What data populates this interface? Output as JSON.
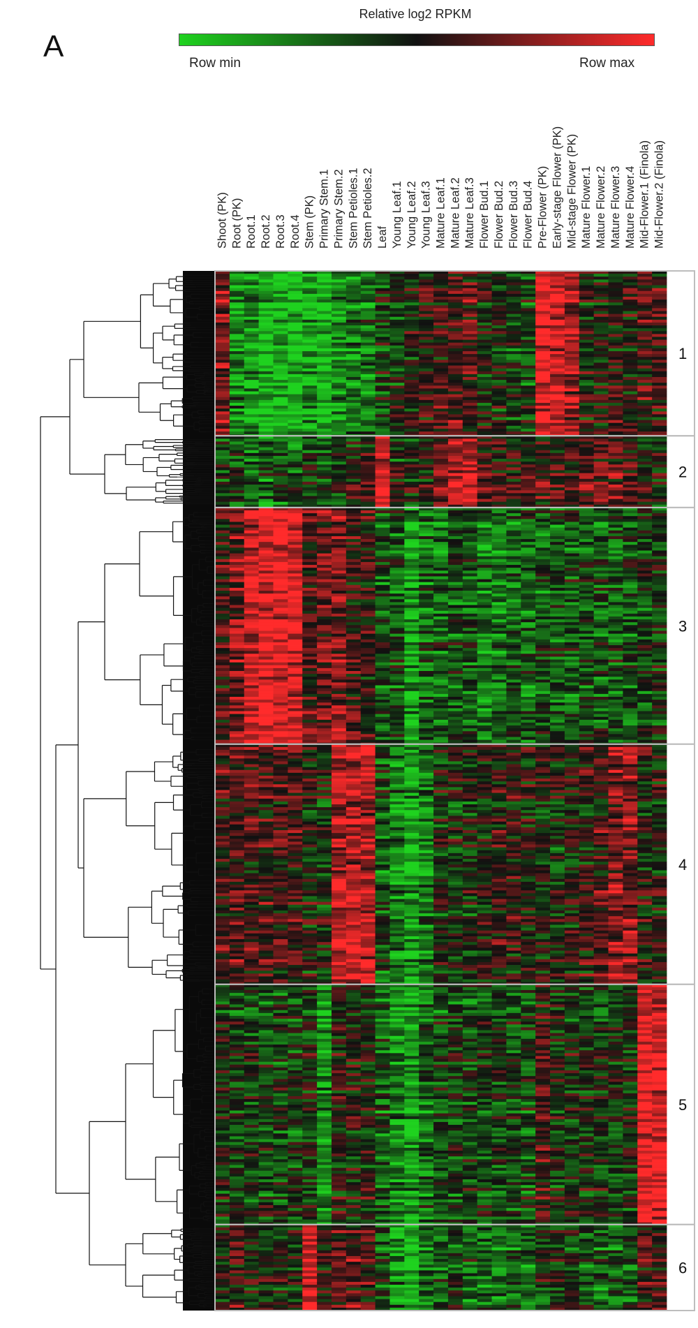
{
  "panel_label": "A",
  "chart_data": {
    "type": "heatmap",
    "title": "",
    "colorbar": {
      "title": "Relative log2 RPKM",
      "min_label": "Row min",
      "max_label": "Row max",
      "colors": [
        "#1fd21f",
        "#111111",
        "#ff2b2b"
      ]
    },
    "columns": [
      "Shoot (PK)",
      "Root (PK)",
      "Root.1",
      "Root.2",
      "Root.3",
      "Root.4",
      "Stem (PK)",
      "Primary Stem.1",
      "Primary Stem.2",
      "Stem Petioles.1",
      "Stem Petioles.2",
      "Leaf",
      "Young Leaf.1",
      "Young Leaf.2",
      "Young Leaf.3",
      "Mature Leaf.1",
      "Mature Leaf.2",
      "Mature Leaf.3",
      "Flower Bud.1",
      "Flower Bud.2",
      "Flower Bud.3",
      "Flower Bud.4",
      "Pre-Flower (PK)",
      "Early-stage Flower (PK)",
      "Mid-stage Flower (PK)",
      "Mature Flower.1",
      "Mature Flower.2",
      "Mature Flower.3",
      "Mature Flower.4",
      "Mid-Flower.1 (Finola)",
      "Mid-Flower.2 (Finola)"
    ],
    "clusters": [
      {
        "label": "1",
        "rows": 230,
        "profile": [
          0.75,
          0.2,
          0.15,
          0.05,
          0.05,
          0.05,
          0.15,
          0.05,
          0.2,
          0.25,
          0.3,
          0.4,
          0.45,
          0.5,
          0.55,
          0.6,
          0.65,
          0.6,
          0.5,
          0.45,
          0.4,
          0.4,
          0.95,
          0.9,
          0.8,
          0.5,
          0.5,
          0.55,
          0.55,
          0.6,
          0.6
        ]
      },
      {
        "label": "2",
        "rows": 100,
        "profile": [
          0.4,
          0.35,
          0.3,
          0.3,
          0.3,
          0.3,
          0.4,
          0.35,
          0.4,
          0.5,
          0.5,
          0.95,
          0.45,
          0.45,
          0.5,
          0.7,
          0.8,
          0.85,
          0.6,
          0.55,
          0.55,
          0.55,
          0.6,
          0.55,
          0.55,
          0.65,
          0.7,
          0.65,
          0.6,
          0.5,
          0.45
        ]
      },
      {
        "label": "3",
        "rows": 330,
        "profile": [
          0.6,
          0.7,
          0.9,
          0.95,
          0.95,
          0.95,
          0.6,
          0.7,
          0.75,
          0.6,
          0.55,
          0.35,
          0.35,
          0.15,
          0.3,
          0.3,
          0.35,
          0.35,
          0.25,
          0.25,
          0.3,
          0.3,
          0.35,
          0.35,
          0.35,
          0.35,
          0.35,
          0.35,
          0.35,
          0.4,
          0.4
        ]
      },
      {
        "label": "4",
        "rows": 335,
        "profile": [
          0.6,
          0.65,
          0.6,
          0.6,
          0.6,
          0.6,
          0.5,
          0.45,
          0.85,
          0.85,
          0.85,
          0.35,
          0.2,
          0.1,
          0.25,
          0.45,
          0.45,
          0.45,
          0.5,
          0.55,
          0.55,
          0.5,
          0.5,
          0.45,
          0.5,
          0.55,
          0.6,
          0.75,
          0.75,
          0.5,
          0.5
        ]
      },
      {
        "label": "5",
        "rows": 335,
        "profile": [
          0.45,
          0.4,
          0.4,
          0.4,
          0.4,
          0.4,
          0.45,
          0.2,
          0.5,
          0.5,
          0.5,
          0.35,
          0.2,
          0.15,
          0.3,
          0.35,
          0.4,
          0.4,
          0.4,
          0.4,
          0.4,
          0.4,
          0.6,
          0.45,
          0.45,
          0.45,
          0.45,
          0.45,
          0.45,
          0.95,
          0.95
        ]
      },
      {
        "label": "6",
        "rows": 120,
        "profile": [
          0.5,
          0.6,
          0.5,
          0.5,
          0.5,
          0.5,
          0.95,
          0.55,
          0.65,
          0.65,
          0.6,
          0.35,
          0.2,
          0.1,
          0.3,
          0.35,
          0.4,
          0.35,
          0.3,
          0.3,
          0.3,
          0.3,
          0.45,
          0.45,
          0.45,
          0.35,
          0.35,
          0.35,
          0.35,
          0.6,
          0.6
        ]
      }
    ],
    "value_range": [
      0,
      1
    ],
    "legend_position": "top"
  }
}
